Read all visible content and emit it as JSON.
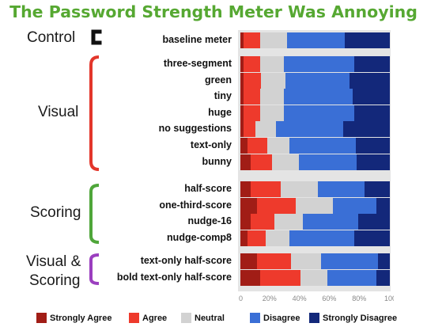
{
  "title": "The Password Strength Meter Was Annoying",
  "groups": {
    "control": "Control",
    "visual": "Visual",
    "scoring": "Scoring",
    "visual_scoring_line1": "Visual &",
    "visual_scoring_line2": "Scoring"
  },
  "colors": {
    "strongly_agree": "#a11d16",
    "agree": "#ee3a2c",
    "neutral": "#d2d2d2",
    "disagree": "#3a6fd6",
    "strongly_disagree": "#13287a",
    "control_bracket": "#111111",
    "visual_bracket": "#e3362b",
    "scoring_bracket": "#4fa63a",
    "visual_scoring_bracket": "#9b3fbf",
    "title": "#56a832"
  },
  "chart_data": {
    "type": "bar",
    "orientation": "horizontal",
    "stacked": true,
    "title": "The Password Strength Meter Was Annoying",
    "categories": [
      "baseline meter",
      "three-segment",
      "green",
      "tiny",
      "huge",
      "no suggestions",
      "text-only",
      "bunny",
      "half-score",
      "one-third-score",
      "nudge-16",
      "nudge-comp8",
      "text-only half-score",
      "bold text-only half-score"
    ],
    "xlim": [
      0,
      100
    ],
    "ticks": [
      "0",
      "20%",
      "40%",
      "60%",
      "80%",
      "100%"
    ],
    "legend_position": "bottom",
    "series": [
      {
        "name": "Strongly Agree",
        "values": [
          2,
          2,
          2,
          2,
          2,
          2,
          5,
          7,
          7,
          11,
          7,
          5,
          11,
          13
        ]
      },
      {
        "name": "Agree",
        "values": [
          11,
          11,
          12,
          11,
          11,
          8,
          13,
          14,
          20,
          26,
          16,
          12,
          23,
          27
        ]
      },
      {
        "name": "Neutral",
        "values": [
          18,
          16,
          16,
          16,
          16,
          14,
          15,
          18,
          25,
          25,
          19,
          16,
          20,
          18
        ]
      },
      {
        "name": "Disagree",
        "values": [
          39,
          47,
          43,
          46,
          47,
          45,
          44,
          39,
          31,
          29,
          37,
          43,
          38,
          33
        ]
      },
      {
        "name": "Strongly Disagree",
        "values": [
          30,
          24,
          27,
          25,
          24,
          31,
          23,
          22,
          17,
          9,
          21,
          24,
          8,
          9
        ]
      }
    ]
  }
}
